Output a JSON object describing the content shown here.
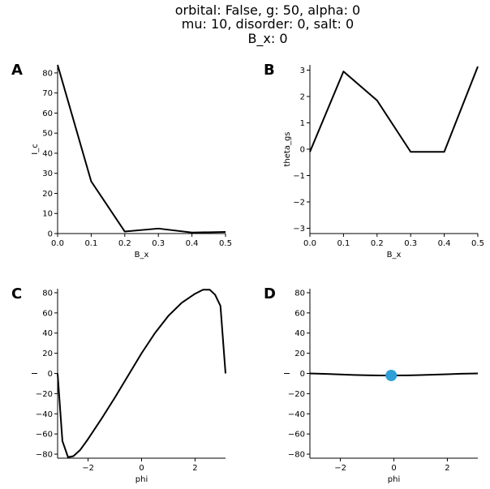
{
  "figure": {
    "title_lines": [
      "orbital: False, g: 50, alpha: 0",
      "mu: 10, disorder: 0, salt: 0",
      "B_x: 0"
    ]
  },
  "chart_data": [
    {
      "panel": "A",
      "type": "line",
      "xlabel": "B_x",
      "ylabel": "I_c",
      "xlim": [
        0.0,
        0.5
      ],
      "ylim": [
        0,
        84
      ],
      "xticks": [
        0.0,
        0.1,
        0.2,
        0.3,
        0.4,
        0.5
      ],
      "xtick_labels": [
        "0.0",
        "0.1",
        "0.2",
        "0.3",
        "0.4",
        "0.5"
      ],
      "yticks": [
        0,
        10,
        20,
        30,
        40,
        50,
        60,
        70,
        80
      ],
      "ytick_labels": [
        "0",
        "10",
        "20",
        "30",
        "40",
        "50",
        "60",
        "70",
        "80"
      ],
      "grid": false,
      "series": [
        {
          "x": [
            0.0,
            0.1,
            0.2,
            0.3,
            0.4,
            0.5
          ],
          "y": [
            84,
            26,
            1,
            2.5,
            0.5,
            0.8
          ]
        }
      ]
    },
    {
      "panel": "B",
      "type": "line",
      "xlabel": "B_x",
      "ylabel": "theta_gs",
      "xlim": [
        0.0,
        0.5
      ],
      "ylim": [
        -3.2,
        3.2
      ],
      "xticks": [
        0.0,
        0.1,
        0.2,
        0.3,
        0.4,
        0.5
      ],
      "xtick_labels": [
        "0.0",
        "0.1",
        "0.2",
        "0.3",
        "0.4",
        "0.5"
      ],
      "yticks": [
        -3,
        -2,
        -1,
        0,
        1,
        2,
        3
      ],
      "ytick_labels": [
        "−3",
        "−2",
        "−1",
        "0",
        "1",
        "2",
        "3"
      ],
      "grid": false,
      "series": [
        {
          "x": [
            0.0,
            0.1,
            0.2,
            0.3,
            0.4,
            0.5
          ],
          "y": [
            -0.1,
            2.95,
            1.85,
            -0.1,
            -0.1,
            3.14
          ]
        }
      ]
    },
    {
      "panel": "C",
      "type": "line",
      "xlabel": "phi",
      "ylabel": "I",
      "xlim": [
        -3.14,
        3.14
      ],
      "ylim": [
        -84,
        84
      ],
      "xticks": [
        -2,
        0,
        2
      ],
      "xtick_labels": [
        "−2",
        "0",
        "2"
      ],
      "yticks": [
        -80,
        -60,
        -40,
        -20,
        0,
        20,
        40,
        60,
        80
      ],
      "ytick_labels": [
        "−80",
        "−60",
        "−40",
        "−20",
        "0",
        "20",
        "40",
        "60",
        "80"
      ],
      "grid": false,
      "series": [
        {
          "x": [
            -3.14,
            -2.96,
            -2.75,
            -2.55,
            -2.3,
            -2.0,
            -1.5,
            -1.0,
            -0.5,
            0.0,
            0.5,
            1.0,
            1.5,
            2.0,
            2.3,
            2.55,
            2.75,
            2.95,
            3.14
          ],
          "y": [
            0,
            -67,
            -83,
            -82,
            -76,
            -65,
            -45,
            -24,
            -2,
            20,
            40,
            57,
            70,
            79,
            83,
            83,
            78,
            67,
            0
          ]
        }
      ]
    },
    {
      "panel": "D",
      "type": "line",
      "xlabel": "phi",
      "ylabel": "I",
      "xlim": [
        -3.14,
        3.14
      ],
      "ylim": [
        -84,
        84
      ],
      "xticks": [
        -2,
        0,
        2
      ],
      "xtick_labels": [
        "−2",
        "0",
        "2"
      ],
      "yticks": [
        -80,
        -60,
        -40,
        -20,
        0,
        20,
        40,
        60,
        80
      ],
      "ytick_labels": [
        "−80",
        "−60",
        "−40",
        "−20",
        "0",
        "20",
        "40",
        "60",
        "80"
      ],
      "grid": false,
      "series": [
        {
          "x": [
            -3.14,
            -2.5,
            -2.0,
            -1.5,
            -1.0,
            -0.5,
            -0.1,
            0.5,
            1.0,
            1.5,
            2.0,
            2.5,
            3.14
          ],
          "y": [
            0,
            -0.5,
            -1,
            -1.5,
            -1.8,
            -2,
            -2,
            -1.9,
            -1.6,
            -1.2,
            -0.8,
            -0.3,
            0
          ]
        }
      ],
      "highlight_point": {
        "x": -0.1,
        "y": -2,
        "color": "#2e9fd8"
      }
    }
  ]
}
